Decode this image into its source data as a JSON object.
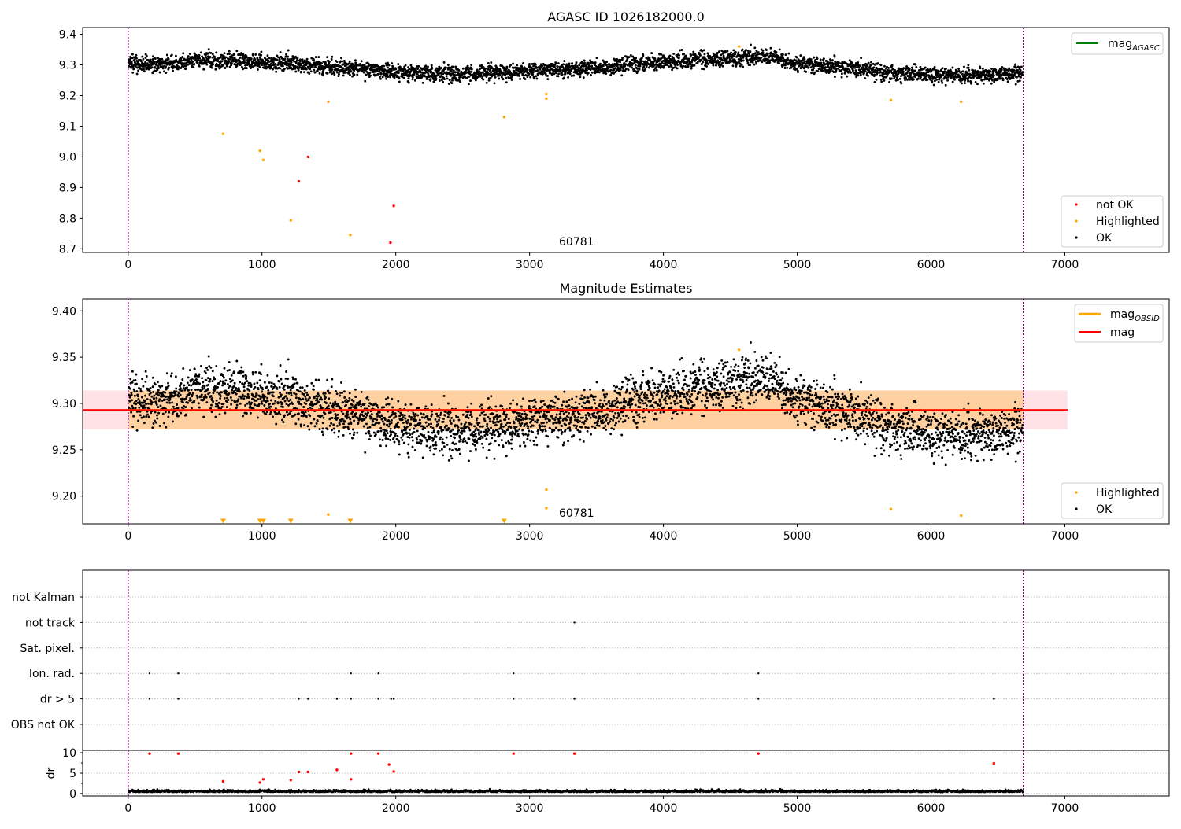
{
  "chart_data": [
    {
      "type": "scatter",
      "title": "AGASC ID 1026182000.0",
      "xlim": [
        -340,
        7780
      ],
      "ylim": [
        8.688,
        9.422
      ],
      "xticks": [
        0,
        1000,
        2000,
        3000,
        4000,
        5000,
        6000,
        7000
      ],
      "yticks": [
        8.7,
        8.8,
        8.9,
        9.0,
        9.1,
        9.2,
        9.3,
        9.4
      ],
      "ytick_decimals": 1,
      "vlines": [
        0,
        6690
      ],
      "annotation": {
        "text": "60781",
        "x": 3200,
        "y": 8.71
      },
      "legend_upper": [
        {
          "label": "mag",
          "sub": "AGASC",
          "color": "#008000",
          "kind": "line"
        }
      ],
      "legend_lower": [
        {
          "label": "not OK",
          "color": "#ff0000",
          "kind": "dot"
        },
        {
          "label": "Highlighted",
          "color": "#ffa500",
          "kind": "dot"
        },
        {
          "label": "OK",
          "color": "#000000",
          "kind": "dot"
        }
      ],
      "series": [
        {
          "name": "OK",
          "color": "#000000",
          "kind": "trend",
          "trend": [
            [
              0,
              9.305
            ],
            [
              300,
              9.302
            ],
            [
              500,
              9.315
            ],
            [
              800,
              9.315
            ],
            [
              1000,
              9.305
            ],
            [
              1200,
              9.305
            ],
            [
              1400,
              9.295
            ],
            [
              1700,
              9.29
            ],
            [
              2000,
              9.275
            ],
            [
              2500,
              9.27
            ],
            [
              3000,
              9.28
            ],
            [
              3500,
              9.29
            ],
            [
              3800,
              9.305
            ],
            [
              4200,
              9.315
            ],
            [
              4600,
              9.325
            ],
            [
              4800,
              9.325
            ],
            [
              5000,
              9.305
            ],
            [
              5400,
              9.29
            ],
            [
              5700,
              9.275
            ],
            [
              6200,
              9.265
            ],
            [
              6690,
              9.275
            ]
          ],
          "spread": 0.013
        },
        {
          "name": "Highlighted",
          "color": "#ffa500",
          "x": [
            710,
            985,
            1010,
            1215,
            1495,
            1660,
            2810,
            3125,
            3125,
            4565,
            5700,
            6225
          ],
          "y": [
            9.075,
            9.02,
            8.99,
            8.793,
            9.18,
            8.745,
            9.13,
            9.19,
            9.205,
            9.36,
            9.185,
            9.18
          ]
        },
        {
          "name": "not OK",
          "color": "#ff0000",
          "x": [
            1275,
            1345,
            1960,
            1985
          ],
          "y": [
            8.92,
            9.0,
            8.72,
            8.84
          ]
        }
      ]
    },
    {
      "type": "scatter",
      "title": "Magnitude Estimates",
      "xlim": [
        -340,
        7780
      ],
      "ylim": [
        9.17,
        9.413
      ],
      "xticks": [
        0,
        1000,
        2000,
        3000,
        4000,
        5000,
        6000,
        7000
      ],
      "yticks": [
        9.2,
        9.25,
        9.3,
        9.35,
        9.4
      ],
      "ytick_decimals": 2,
      "vlines": [
        0,
        6690
      ],
      "annotation": {
        "text": "60781",
        "x": 3200,
        "y": 9.178
      },
      "bands": [
        {
          "y0": 9.272,
          "y1": 9.314,
          "x0": -340,
          "x1": 7020,
          "color": "#ffb6c1"
        },
        {
          "y0": 9.272,
          "y1": 9.314,
          "x0": 0,
          "x1": 6690,
          "color": "#ffa500"
        }
      ],
      "hlines": [
        {
          "y": 9.293,
          "x0": -340,
          "x1": 7020,
          "color": "#ff0000"
        },
        {
          "y": 9.293,
          "x0": 0,
          "x1": 6690,
          "color": "#ffa500"
        }
      ],
      "legend_upper": [
        {
          "label": "mag",
          "sub": "OBSID",
          "color": "#ffa500",
          "kind": "line"
        },
        {
          "label": "mag",
          "sub": "",
          "color": "#ff0000",
          "kind": "line"
        }
      ],
      "legend_lower": [
        {
          "label": "Highlighted",
          "color": "#ffa500",
          "kind": "dot"
        },
        {
          "label": "OK",
          "color": "#000000",
          "kind": "dot"
        }
      ],
      "series": [
        {
          "name": "OK",
          "color": "#000000",
          "kind": "trend",
          "trend": [
            [
              0,
              9.305
            ],
            [
              300,
              9.302
            ],
            [
              500,
              9.315
            ],
            [
              800,
              9.315
            ],
            [
              1000,
              9.305
            ],
            [
              1200,
              9.305
            ],
            [
              1400,
              9.295
            ],
            [
              1700,
              9.29
            ],
            [
              2000,
              9.275
            ],
            [
              2500,
              9.27
            ],
            [
              3000,
              9.28
            ],
            [
              3500,
              9.29
            ],
            [
              3800,
              9.305
            ],
            [
              4200,
              9.315
            ],
            [
              4600,
              9.325
            ],
            [
              4800,
              9.325
            ],
            [
              5000,
              9.305
            ],
            [
              5400,
              9.29
            ],
            [
              5700,
              9.275
            ],
            [
              6200,
              9.265
            ],
            [
              6690,
              9.275
            ]
          ],
          "spread": 0.013
        },
        {
          "name": "Highlighted",
          "color": "#ffa500",
          "x": [
            1495,
            3125,
            3125,
            4565,
            5700,
            6225
          ],
          "y": [
            9.18,
            9.187,
            9.207,
            9.358,
            9.186,
            9.179
          ]
        },
        {
          "name": "Highlighted (clipped)",
          "color": "#ffa500",
          "marker": "tri",
          "x": [
            710,
            985,
            1010,
            1215,
            1660,
            2810
          ],
          "y": [
            9.173,
            9.173,
            9.173,
            9.173,
            9.173,
            9.173
          ]
        }
      ]
    },
    {
      "type": "flags",
      "categories": [
        "OBS not OK",
        "dr > 5",
        "Ion. rad.",
        "Sat. pixel.",
        "not track",
        "not Kalman"
      ],
      "xlim": [
        -340,
        7780
      ],
      "vlines": [
        0,
        6690
      ],
      "flags": {
        "dr > 5": [
          160,
          375,
          1275,
          1345,
          1560,
          1665,
          1870,
          1965,
          1985,
          2880,
          3335,
          4710,
          6470
        ],
        "Ion. rad.": [
          160,
          375,
          1665,
          1870,
          2880,
          4710
        ],
        "not track": [
          3335
        ]
      }
    },
    {
      "type": "scatter",
      "ylabel": "dr",
      "xlim": [
        -340,
        7780
      ],
      "ylim": [
        -0.6,
        10.6
      ],
      "xticks": [
        0,
        1000,
        2000,
        3000,
        4000,
        5000,
        6000,
        7000
      ],
      "yticks": [
        0,
        5,
        10
      ],
      "vlines": [
        0,
        6690
      ],
      "series": [
        {
          "name": "OK",
          "color": "#000000",
          "kind": "noise",
          "mean": 0.5,
          "spread": 0.35
        },
        {
          "name": "not OK",
          "color": "#ff0000",
          "x": [
            160,
            375,
            710,
            985,
            1010,
            1215,
            1275,
            1345,
            1560,
            1665,
            1665,
            1870,
            1950,
            1985,
            2880,
            3335,
            4710,
            6470
          ],
          "y": [
            9.8,
            9.8,
            3.0,
            2.7,
            3.5,
            3.3,
            5.3,
            5.3,
            5.8,
            3.5,
            9.8,
            9.8,
            7.1,
            5.4,
            9.8,
            9.8,
            9.8,
            7.4
          ]
        }
      ]
    }
  ]
}
